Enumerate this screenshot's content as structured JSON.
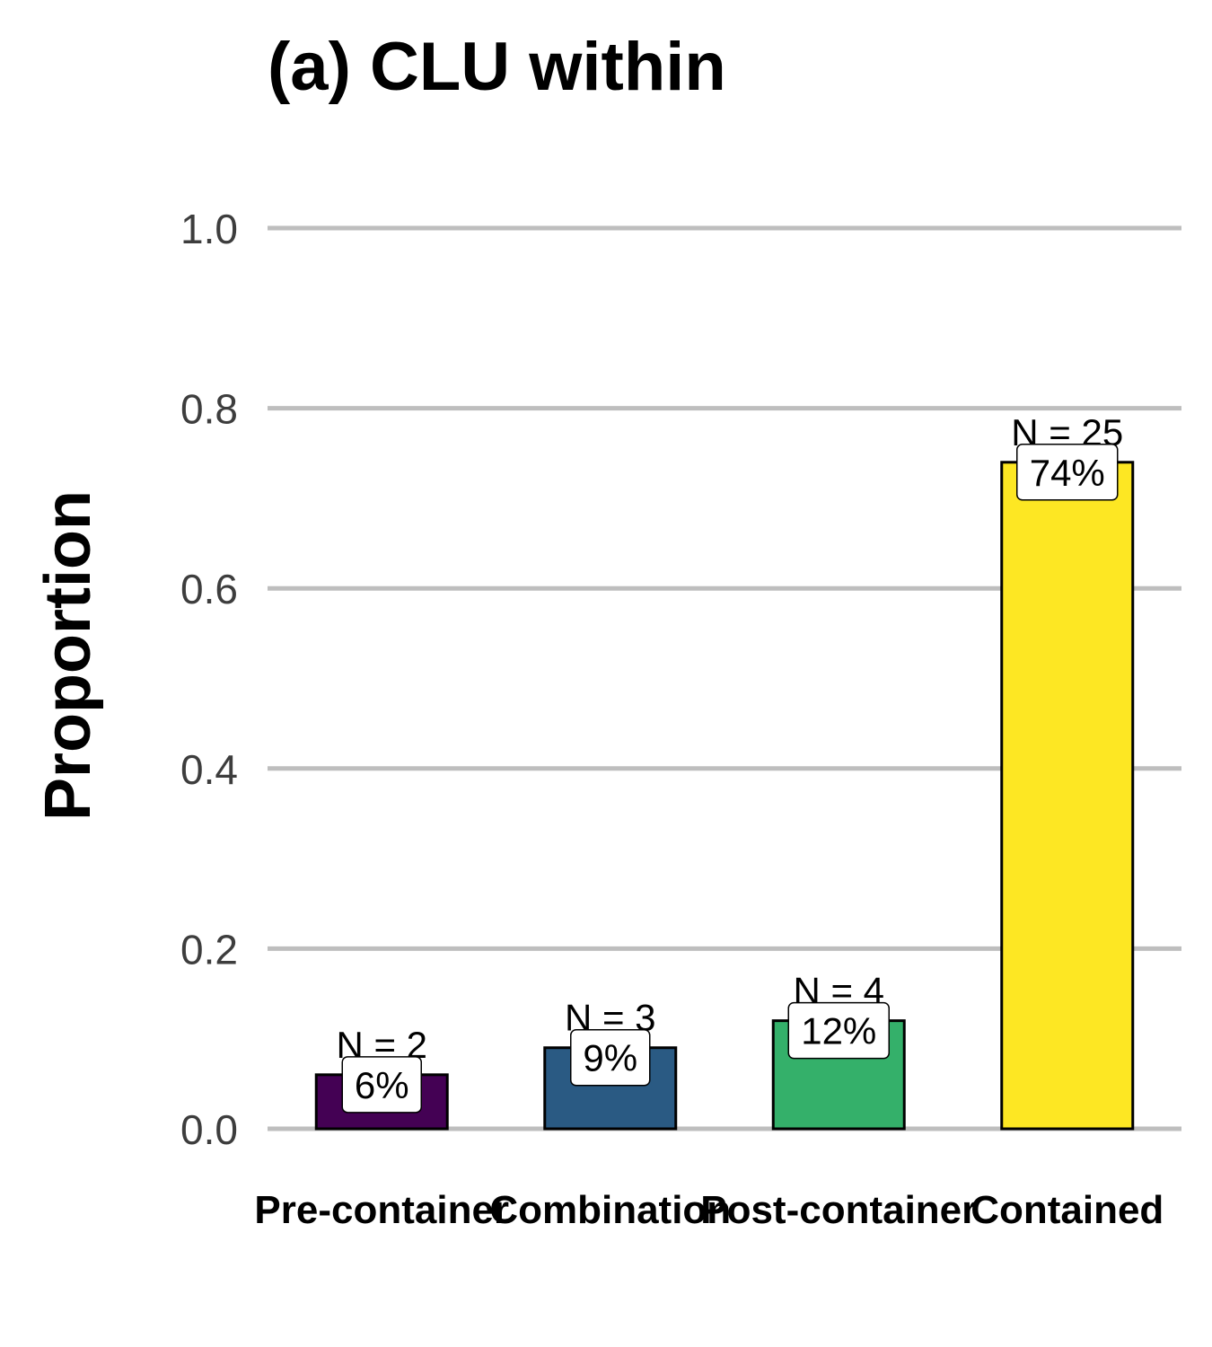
{
  "chart_data": {
    "type": "bar",
    "title": "(a) CLU within",
    "xlabel": "",
    "ylabel": "Proportion",
    "ylim": [
      0,
      1.0
    ],
    "yticks": [
      "0.0",
      "0.2",
      "0.4",
      "0.6",
      "0.8",
      "1.0"
    ],
    "grid": "horizontal",
    "legend": "none",
    "categories": [
      "Pre-container",
      "Combination",
      "Post-container",
      "Contained"
    ],
    "values": [
      0.06,
      0.09,
      0.12,
      0.74
    ],
    "counts": [
      "N = 2",
      "N = 3",
      "N = 4",
      "N = 25"
    ],
    "percent_labels": [
      "6%",
      "9%",
      "12%",
      "74%"
    ],
    "colors": [
      "#440154",
      "#2a5a83",
      "#34b06a",
      "#fde723"
    ]
  }
}
